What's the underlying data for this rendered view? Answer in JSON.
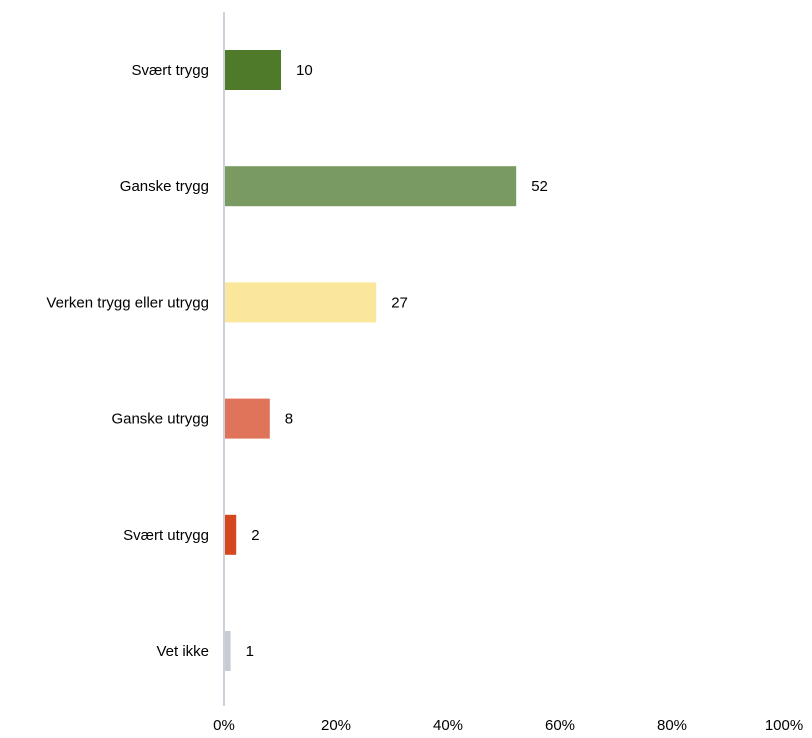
{
  "chart_data": {
    "type": "bar",
    "orientation": "horizontal",
    "categories": [
      "Svært trygg",
      "Ganske trygg",
      "Verken trygg eller utrygg",
      "Ganske utrygg",
      "Svært utrygg",
      "Vet ikke"
    ],
    "values": [
      10,
      52,
      27,
      8,
      2,
      1
    ],
    "colors": [
      "#4e7a2a",
      "#799a60",
      "#fbe79b",
      "#df745b",
      "#d5481f",
      "#c8ccd2"
    ],
    "xticks": [
      "0%",
      "20%",
      "40%",
      "60%",
      "80%",
      "100%"
    ],
    "xlim": [
      0,
      100
    ],
    "grid": false,
    "legend": "none",
    "title": "",
    "xlabel": "",
    "ylabel": ""
  }
}
